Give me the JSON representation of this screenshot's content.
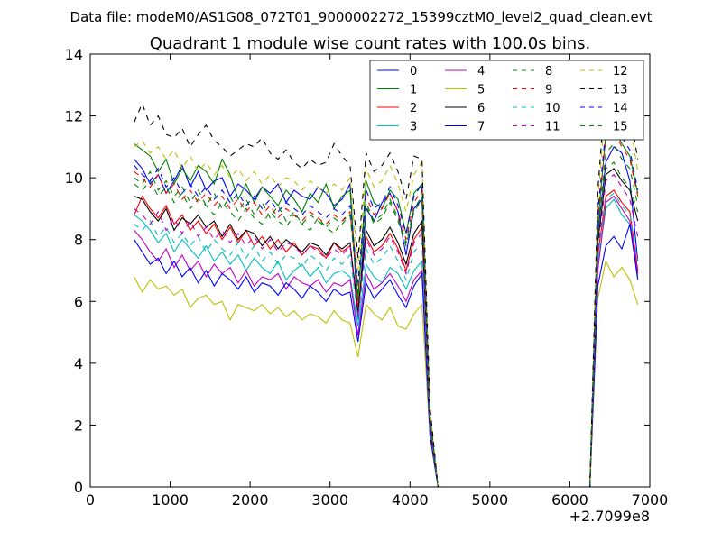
{
  "figure": {
    "suptitle": "Data file: modeM0/AS1G08_072T01_9000002272_15399cztM0_level2_quad_clean.evt"
  },
  "chart_data": {
    "type": "line",
    "title": "Quadrant 1 module wise count rates with 100.0s bins.",
    "xlabel": "",
    "ylabel": "",
    "x_offset_label": "+2.7099e8",
    "xlim": [
      0,
      7000
    ],
    "ylim": [
      0,
      14
    ],
    "x_ticks": [
      0,
      1000,
      2000,
      3000,
      4000,
      5000,
      6000,
      7000
    ],
    "y_ticks": [
      0,
      2,
      4,
      6,
      8,
      10,
      12,
      14
    ],
    "grid": false,
    "legend_position": "top-right",
    "legend_columns": 4,
    "x": [
      550,
      650,
      750,
      850,
      950,
      1050,
      1150,
      1250,
      1350,
      1450,
      1550,
      1650,
      1750,
      1850,
      1950,
      2050,
      2150,
      2250,
      2350,
      2450,
      2550,
      2650,
      2750,
      2850,
      2950,
      3050,
      3150,
      3250,
      3350,
      3450,
      3550,
      3650,
      3750,
      3850,
      3950,
      4050,
      4150,
      4250,
      4350,
      4450,
      4550,
      4650,
      4750,
      4850,
      4950,
      5050,
      5150,
      5250,
      5350,
      5450,
      5550,
      5650,
      5750,
      5850,
      5950,
      6050,
      6150,
      6250,
      6350,
      6450,
      6550,
      6650,
      6750,
      6850
    ],
    "series": [
      {
        "name": "0",
        "color": "#0000ff",
        "dash": "solid",
        "values": [
          10.6,
          10.3,
          9.8,
          10.1,
          9.5,
          9.9,
          10.4,
          9.7,
          10.2,
          9.6,
          9.9,
          10.0,
          9.4,
          9.8,
          9.6,
          9.3,
          9.7,
          9.5,
          9.8,
          9.2,
          9.6,
          9.4,
          9.3,
          9.7,
          9.5,
          9.1,
          9.3,
          9.8,
          5.4,
          9.0,
          8.6,
          9.2,
          9.5,
          8.9,
          7.5,
          9.0,
          9.3,
          2.2,
          0,
          0,
          0,
          0,
          0,
          0,
          0,
          0,
          0,
          0,
          0,
          0,
          0,
          0,
          0,
          0,
          0,
          0,
          0,
          0,
          8.2,
          10.5,
          11.0,
          10.8,
          9.9,
          7.3
        ]
      },
      {
        "name": "1",
        "color": "#008000",
        "dash": "solid",
        "values": [
          11.1,
          10.9,
          10.7,
          10.2,
          10.6,
          9.8,
          10.3,
          9.9,
          10.4,
          10.2,
          9.8,
          10.6,
          10.1,
          9.3,
          9.8,
          9.2,
          9.7,
          9.4,
          9.1,
          9.6,
          9.3,
          8.9,
          9.5,
          9.2,
          9.8,
          9.0,
          9.4,
          9.6,
          6.0,
          9.9,
          9.2,
          9.0,
          9.6,
          9.3,
          8.2,
          9.5,
          9.8,
          2.3,
          0,
          0,
          0,
          0,
          0,
          0,
          0,
          0,
          0,
          0,
          0,
          0,
          0,
          0,
          0,
          0,
          0,
          0,
          0,
          0,
          8.5,
          11.4,
          11.6,
          11.1,
          10.7,
          9.5
        ]
      },
      {
        "name": "2",
        "color": "#ff0000",
        "dash": "solid",
        "values": [
          8.8,
          9.4,
          9.0,
          8.7,
          9.1,
          8.5,
          8.8,
          8.3,
          8.6,
          8.2,
          8.5,
          8.0,
          8.4,
          7.9,
          8.3,
          7.8,
          8.1,
          7.7,
          8.0,
          7.6,
          7.9,
          7.5,
          7.8,
          7.7,
          7.4,
          7.9,
          7.6,
          7.8,
          5.8,
          8.1,
          7.6,
          7.8,
          8.2,
          7.7,
          7.0,
          8.0,
          8.4,
          2.0,
          0,
          0,
          0,
          0,
          0,
          0,
          0,
          0,
          0,
          0,
          0,
          0,
          0,
          0,
          0,
          0,
          0,
          0,
          0,
          0,
          7.5,
          9.4,
          9.6,
          9.2,
          8.9,
          7.0
        ]
      },
      {
        "name": "3",
        "color": "#00bfbf",
        "dash": "solid",
        "values": [
          8.8,
          8.6,
          8.3,
          7.9,
          8.2,
          7.6,
          8.0,
          7.7,
          7.4,
          7.8,
          7.3,
          7.6,
          7.2,
          7.5,
          7.0,
          7.4,
          7.1,
          6.9,
          7.3,
          6.7,
          7.0,
          7.2,
          6.8,
          7.1,
          6.6,
          6.9,
          7.0,
          6.8,
          5.2,
          7.2,
          6.8,
          6.6,
          7.1,
          6.9,
          6.4,
          7.0,
          7.3,
          1.9,
          0,
          0,
          0,
          0,
          0,
          0,
          0,
          0,
          0,
          0,
          0,
          0,
          0,
          0,
          0,
          0,
          0,
          0,
          0,
          0,
          7.2,
          9.0,
          9.3,
          8.8,
          8.5,
          6.8
        ]
      },
      {
        "name": "4",
        "color": "#bf00bf",
        "dash": "solid",
        "values": [
          8.3,
          8.0,
          7.6,
          7.3,
          7.7,
          7.1,
          7.5,
          7.0,
          7.3,
          6.8,
          7.2,
          6.9,
          7.1,
          6.6,
          7.0,
          6.5,
          6.8,
          6.7,
          6.9,
          6.4,
          6.8,
          6.6,
          6.5,
          6.7,
          6.3,
          6.6,
          6.5,
          6.7,
          4.9,
          6.9,
          6.4,
          6.6,
          6.9,
          6.5,
          6.0,
          6.7,
          7.0,
          1.8,
          0,
          0,
          0,
          0,
          0,
          0,
          0,
          0,
          0,
          0,
          0,
          0,
          0,
          0,
          0,
          0,
          0,
          0,
          0,
          0,
          7.0,
          9.2,
          9.4,
          9.0,
          8.6,
          6.9
        ]
      },
      {
        "name": "5",
        "color": "#bfbf00",
        "dash": "solid",
        "values": [
          6.8,
          6.3,
          6.7,
          6.4,
          6.5,
          6.2,
          6.4,
          5.8,
          6.1,
          6.2,
          5.9,
          6.0,
          5.4,
          5.9,
          5.8,
          5.7,
          5.9,
          5.6,
          5.8,
          5.5,
          5.7,
          5.4,
          5.6,
          5.5,
          5.3,
          5.7,
          5.4,
          5.3,
          4.2,
          5.9,
          5.6,
          5.4,
          5.8,
          5.2,
          5.1,
          5.6,
          5.9,
          1.6,
          0,
          0,
          0,
          0,
          0,
          0,
          0,
          0,
          0,
          0,
          0,
          0,
          0,
          0,
          0,
          0,
          0,
          0,
          0,
          0,
          6.1,
          7.3,
          6.8,
          7.1,
          6.7,
          5.9
        ]
      },
      {
        "name": "6",
        "color": "#000000",
        "dash": "solid",
        "values": [
          9.4,
          9.3,
          8.9,
          8.6,
          9.0,
          8.3,
          8.7,
          8.5,
          8.8,
          8.4,
          8.6,
          8.1,
          8.5,
          8.0,
          8.3,
          8.2,
          7.8,
          8.1,
          7.7,
          8.0,
          7.8,
          7.6,
          7.9,
          7.8,
          7.5,
          7.9,
          7.7,
          7.9,
          5.6,
          8.3,
          7.8,
          8.0,
          8.4,
          7.9,
          7.2,
          8.2,
          8.6,
          2.1,
          0,
          0,
          0,
          0,
          0,
          0,
          0,
          0,
          0,
          0,
          0,
          0,
          0,
          0,
          0,
          0,
          0,
          0,
          0,
          0,
          7.9,
          10.1,
          10.3,
          9.9,
          9.6,
          8.6
        ]
      },
      {
        "name": "7",
        "color": "#0000ff",
        "dash": "solid",
        "values": [
          8.0,
          7.6,
          7.2,
          7.4,
          6.9,
          7.3,
          6.8,
          7.1,
          6.6,
          7.0,
          6.5,
          6.9,
          6.7,
          6.4,
          6.8,
          6.3,
          6.6,
          6.5,
          6.2,
          6.6,
          6.4,
          6.1,
          6.5,
          6.3,
          6.0,
          6.4,
          6.2,
          6.3,
          4.7,
          6.6,
          6.1,
          6.4,
          6.7,
          6.2,
          5.8,
          6.5,
          6.9,
          1.7,
          0,
          0,
          0,
          0,
          0,
          0,
          0,
          0,
          0,
          0,
          0,
          0,
          0,
          0,
          0,
          0,
          0,
          0,
          0,
          0,
          6.5,
          7.8,
          8.1,
          7.7,
          8.5,
          6.7
        ]
      },
      {
        "name": "8",
        "color": "#008000",
        "dash": "dash",
        "values": [
          9.8,
          9.6,
          9.9,
          9.4,
          9.7,
          9.2,
          9.5,
          9.0,
          9.3,
          9.1,
          8.8,
          9.2,
          8.9,
          8.6,
          9.0,
          8.7,
          8.5,
          8.9,
          8.6,
          8.4,
          8.8,
          8.5,
          8.3,
          8.7,
          8.4,
          8.2,
          8.6,
          8.8,
          6.2,
          9.1,
          8.5,
          8.7,
          9.2,
          8.6,
          7.8,
          8.9,
          9.3,
          2.2,
          0,
          0,
          0,
          0,
          0,
          0,
          0,
          0,
          0,
          0,
          0,
          0,
          0,
          0,
          0,
          0,
          0,
          0,
          0,
          0,
          8.3,
          10.8,
          11.1,
          10.6,
          10.3,
          9.1
        ]
      },
      {
        "name": "9",
        "color": "#ff0000",
        "dash": "dash",
        "values": [
          10.2,
          10.0,
          9.7,
          10.1,
          9.5,
          9.8,
          9.3,
          9.6,
          9.2,
          9.5,
          9.1,
          9.4,
          9.0,
          9.3,
          8.9,
          9.2,
          8.8,
          9.1,
          8.7,
          9.0,
          8.8,
          8.6,
          8.9,
          8.7,
          8.5,
          8.8,
          8.6,
          8.9,
          6.5,
          9.4,
          8.8,
          9.0,
          9.5,
          8.9,
          8.0,
          9.2,
          9.6,
          2.3,
          0,
          0,
          0,
          0,
          0,
          0,
          0,
          0,
          0,
          0,
          0,
          0,
          0,
          0,
          0,
          0,
          0,
          0,
          0,
          0,
          8.7,
          11.3,
          11.5,
          11.0,
          10.6,
          9.4
        ]
      },
      {
        "name": "10",
        "color": "#00bfbf",
        "dash": "dash",
        "values": [
          8.5,
          8.3,
          8.6,
          8.1,
          8.4,
          7.9,
          8.2,
          7.8,
          8.1,
          7.6,
          8.0,
          7.7,
          7.5,
          7.9,
          7.4,
          7.8,
          7.3,
          7.6,
          7.2,
          7.5,
          7.4,
          7.1,
          7.5,
          7.3,
          7.0,
          7.4,
          7.2,
          7.5,
          5.4,
          7.7,
          7.2,
          7.4,
          7.8,
          7.3,
          6.7,
          7.6,
          7.9,
          1.9,
          0,
          0,
          0,
          0,
          0,
          0,
          0,
          0,
          0,
          0,
          0,
          0,
          0,
          0,
          0,
          0,
          0,
          0,
          0,
          0,
          7.4,
          9.3,
          9.5,
          9.1,
          8.8,
          7.3
        ]
      },
      {
        "name": "11",
        "color": "#bf00bf",
        "dash": "dash",
        "values": [
          9.0,
          8.8,
          8.5,
          8.9,
          8.3,
          8.7,
          8.2,
          8.6,
          8.1,
          8.4,
          8.0,
          8.3,
          7.9,
          8.2,
          7.8,
          8.1,
          7.7,
          8.0,
          7.6,
          7.9,
          7.8,
          7.5,
          7.8,
          7.6,
          7.4,
          7.7,
          7.5,
          7.8,
          5.5,
          8.0,
          7.5,
          7.7,
          8.1,
          7.6,
          6.9,
          7.9,
          8.2,
          2.0,
          0,
          0,
          0,
          0,
          0,
          0,
          0,
          0,
          0,
          0,
          0,
          0,
          0,
          0,
          0,
          0,
          0,
          0,
          0,
          0,
          7.6,
          9.9,
          10.1,
          9.7,
          9.3,
          8.1
        ]
      },
      {
        "name": "12",
        "color": "#bfbf00",
        "dash": "dash",
        "values": [
          11.0,
          11.2,
          10.8,
          11.0,
          10.6,
          10.9,
          10.3,
          10.7,
          10.2,
          10.5,
          10.1,
          10.4,
          10.0,
          10.3,
          9.9,
          10.2,
          9.8,
          10.1,
          9.7,
          10.0,
          9.9,
          9.6,
          9.9,
          9.7,
          9.5,
          9.8,
          9.6,
          10.0,
          7.0,
          10.3,
          9.7,
          9.9,
          10.4,
          9.8,
          8.9,
          10.1,
          10.5,
          2.5,
          0,
          0,
          0,
          0,
          0,
          0,
          0,
          0,
          0,
          0,
          0,
          0,
          0,
          0,
          0,
          0,
          0,
          0,
          0,
          0,
          9.3,
          12.5,
          12.9,
          12.3,
          11.8,
          10.2
        ]
      },
      {
        "name": "13",
        "color": "#000000",
        "dash": "dash",
        "values": [
          11.8,
          12.4,
          11.7,
          12.0,
          11.4,
          11.3,
          11.6,
          11.0,
          11.4,
          11.7,
          11.2,
          11.0,
          10.7,
          10.9,
          11.1,
          11.0,
          11.3,
          10.8,
          10.6,
          10.9,
          10.5,
          10.3,
          10.6,
          10.4,
          10.5,
          11.1,
          10.7,
          10.4,
          7.4,
          10.8,
          10.2,
          10.4,
          10.8,
          10.2,
          9.3,
          10.7,
          10.6,
          2.6,
          0,
          0,
          0,
          0,
          0,
          0,
          0,
          0,
          0,
          0,
          0,
          0,
          0,
          0,
          0,
          0,
          0,
          0,
          0,
          0,
          9.6,
          13.0,
          13.4,
          12.6,
          12.1,
          10.6
        ]
      },
      {
        "name": "14",
        "color": "#0000ff",
        "dash": "dash",
        "values": [
          10.4,
          10.1,
          9.9,
          10.3,
          9.7,
          10.0,
          9.5,
          9.8,
          9.4,
          9.7,
          9.3,
          9.6,
          9.2,
          9.5,
          9.1,
          9.4,
          9.0,
          9.3,
          8.9,
          9.2,
          9.0,
          8.8,
          9.1,
          8.9,
          8.7,
          9.0,
          8.8,
          9.1,
          6.6,
          9.6,
          9.0,
          9.2,
          9.7,
          9.1,
          8.2,
          9.4,
          9.8,
          2.3,
          0,
          0,
          0,
          0,
          0,
          0,
          0,
          0,
          0,
          0,
          0,
          0,
          0,
          0,
          0,
          0,
          0,
          0,
          0,
          0,
          8.9,
          11.6,
          11.9,
          11.3,
          10.9,
          9.6
        ]
      },
      {
        "name": "15",
        "color": "#008000",
        "dash": "dash",
        "values": [
          10.0,
          9.8,
          10.2,
          9.6,
          9.9,
          9.4,
          9.7,
          9.2,
          9.6,
          9.1,
          9.5,
          9.0,
          9.4,
          8.9,
          9.3,
          8.8,
          9.2,
          8.7,
          9.1,
          8.6,
          8.9,
          8.5,
          8.8,
          8.6,
          8.4,
          8.7,
          8.5,
          8.8,
          6.3,
          9.2,
          8.6,
          8.8,
          9.3,
          8.7,
          7.9,
          9.0,
          9.4,
          2.2,
          0,
          0,
          0,
          0,
          0,
          0,
          0,
          0,
          0,
          0,
          0,
          0,
          0,
          0,
          0,
          0,
          0,
          0,
          0,
          0,
          8.4,
          10.3,
          10.5,
          10.0,
          9.7,
          8.9
        ]
      }
    ]
  }
}
